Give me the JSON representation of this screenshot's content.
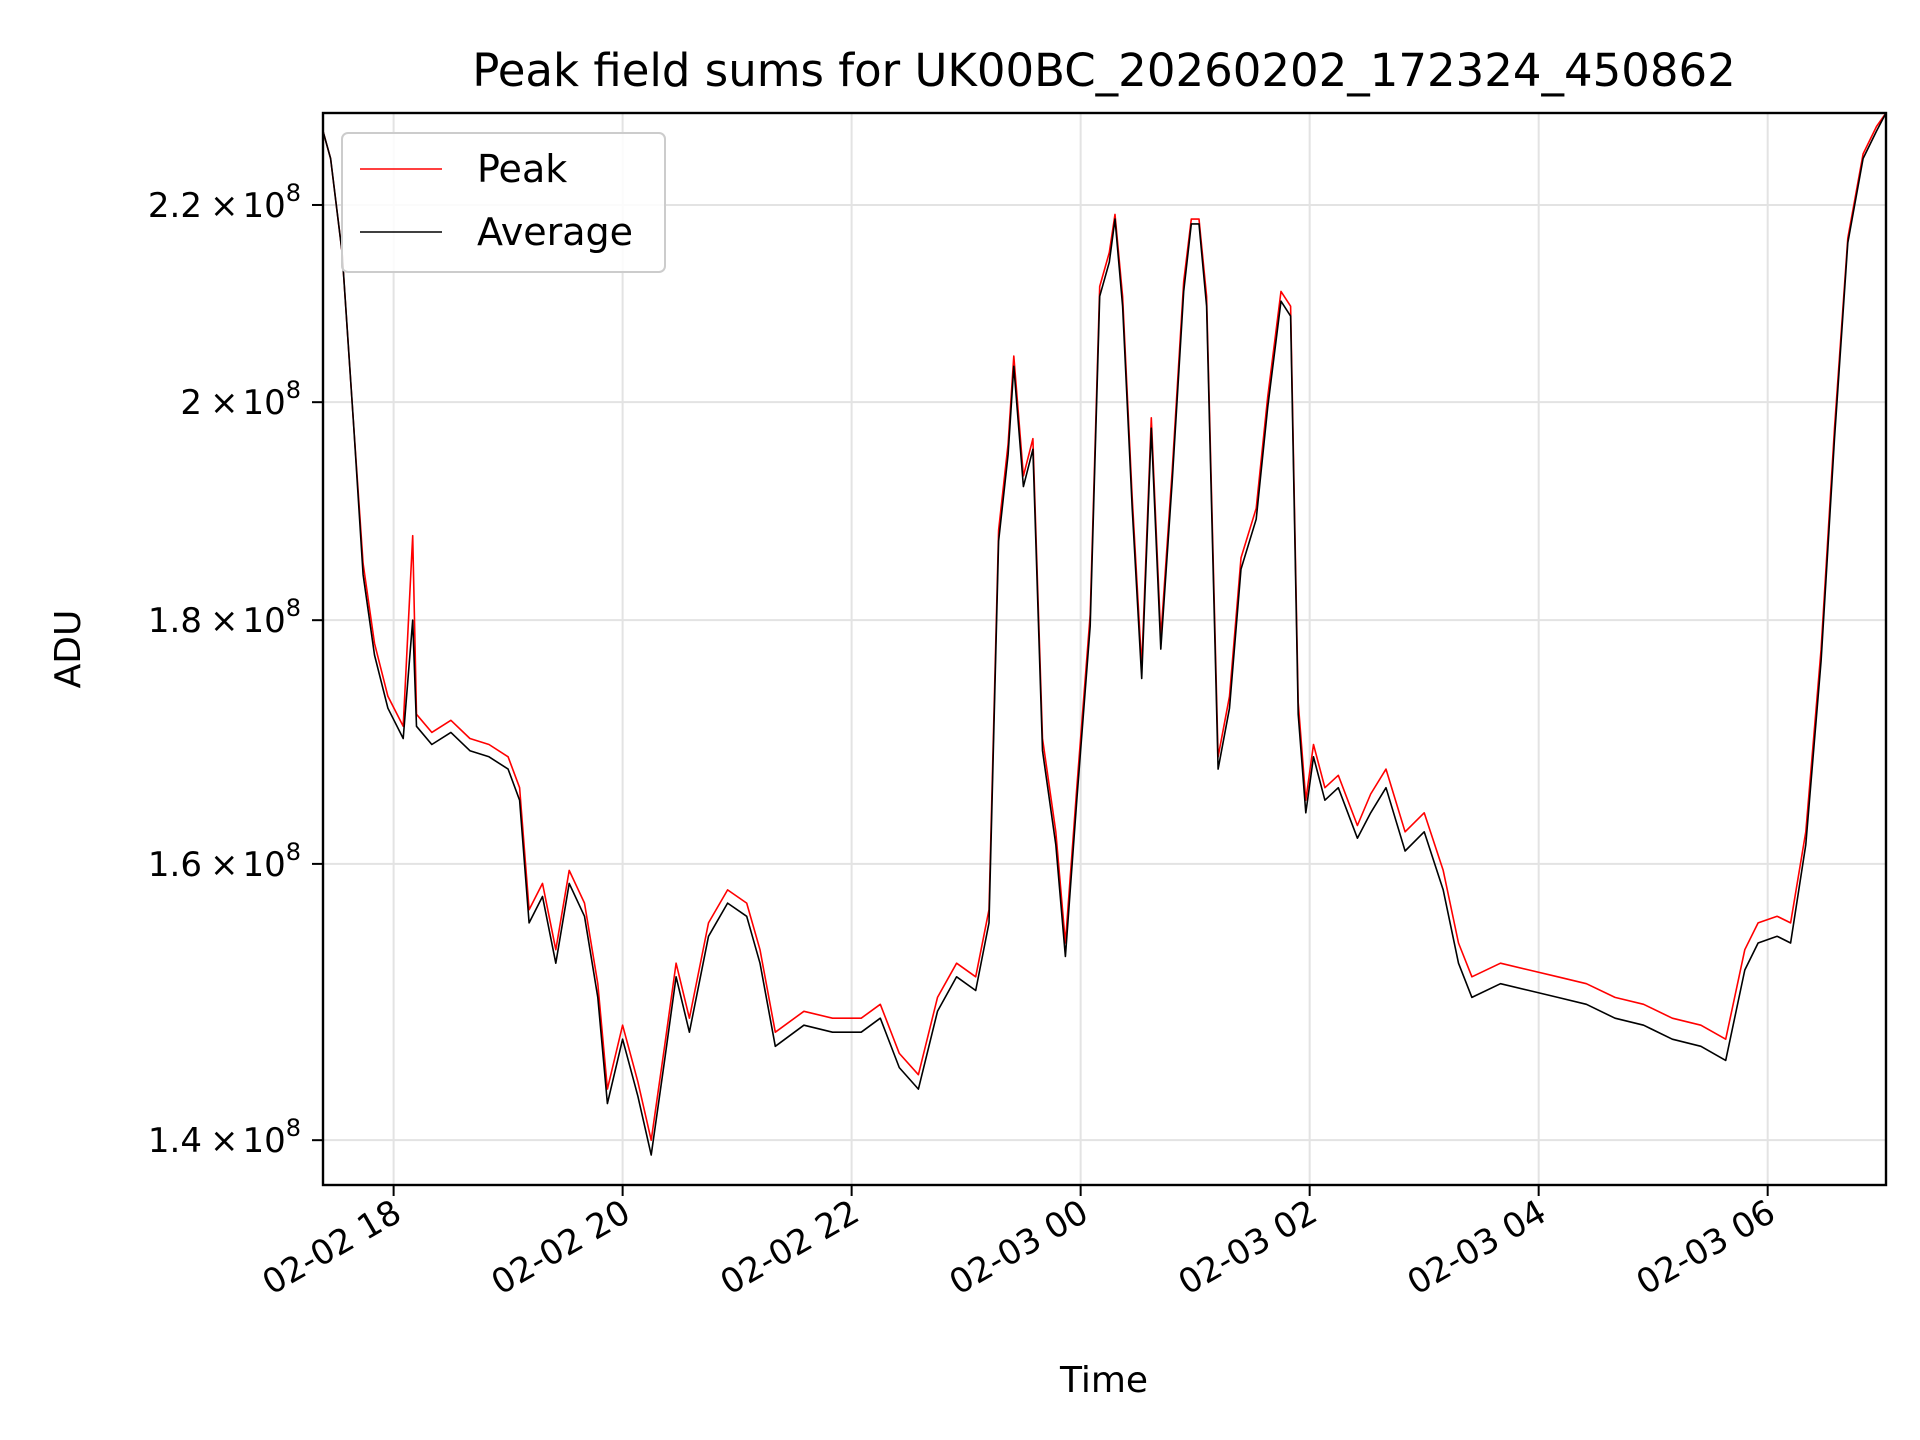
{
  "chart_data": {
    "type": "line",
    "title": "Peak field sums for UK00BC_20260202_172324_450862",
    "xlabel": "Time",
    "ylabel": "ADU",
    "yscale": "log",
    "xlim": [
      "2026-02-02T17:23",
      "2026-02-03T07:02"
    ],
    "ylim": [
      137000000,
      230000000
    ],
    "x_ticks": [
      {
        "value": "2026-02-02T18:00",
        "label": "02-02 18"
      },
      {
        "value": "2026-02-02T20:00",
        "label": "02-02 20"
      },
      {
        "value": "2026-02-02T22:00",
        "label": "02-02 22"
      },
      {
        "value": "2026-02-03T00:00",
        "label": "02-03 00"
      },
      {
        "value": "2026-02-03T02:00",
        "label": "02-03 02"
      },
      {
        "value": "2026-02-03T04:00",
        "label": "02-03 04"
      },
      {
        "value": "2026-02-03T06:00",
        "label": "02-03 06"
      }
    ],
    "y_ticks": [
      {
        "value": 140000000,
        "mantissa": "1.4",
        "exponent": "8"
      },
      {
        "value": 160000000,
        "mantissa": "1.6",
        "exponent": "8"
      },
      {
        "value": 180000000,
        "mantissa": "1.8",
        "exponent": "8"
      },
      {
        "value": 200000000,
        "mantissa": "2",
        "exponent": "8"
      },
      {
        "value": 220000000,
        "mantissa": "2.2",
        "exponent": "8"
      }
    ],
    "times_symbol": "×",
    "base": "10",
    "grid": true,
    "legend_position": "upper-left",
    "series": [
      {
        "name": "Peak",
        "color": "#ff0000",
        "points": [
          [
            "2026-02-02T17:23",
            228000000
          ],
          [
            "2026-02-02T17:27",
            225000000
          ],
          [
            "2026-02-02T17:33",
            215000000
          ],
          [
            "2026-02-02T17:39",
            198000000
          ],
          [
            "2026-02-02T17:44",
            185000000
          ],
          [
            "2026-02-02T17:50",
            178000000
          ],
          [
            "2026-02-02T17:57",
            173500000
          ],
          [
            "2026-02-02T18:05",
            171000000
          ],
          [
            "2026-02-02T18:10",
            187500000
          ],
          [
            "2026-02-02T18:12",
            172000000
          ],
          [
            "2026-02-02T18:20",
            170500000
          ],
          [
            "2026-02-02T18:30",
            171500000
          ],
          [
            "2026-02-02T18:40",
            170000000
          ],
          [
            "2026-02-02T18:50",
            169500000
          ],
          [
            "2026-02-02T19:00",
            168500000
          ],
          [
            "2026-02-02T19:06",
            166000000
          ],
          [
            "2026-02-02T19:11",
            156500000
          ],
          [
            "2026-02-02T19:18",
            158500000
          ],
          [
            "2026-02-02T19:25",
            153500000
          ],
          [
            "2026-02-02T19:32",
            159500000
          ],
          [
            "2026-02-02T19:40",
            157000000
          ],
          [
            "2026-02-02T19:47",
            151000000
          ],
          [
            "2026-02-02T19:52",
            143500000
          ],
          [
            "2026-02-02T20:00",
            148000000
          ],
          [
            "2026-02-02T20:08",
            144000000
          ],
          [
            "2026-02-02T20:15",
            140000000
          ],
          [
            "2026-02-02T20:22",
            146500000
          ],
          [
            "2026-02-02T20:28",
            152500000
          ],
          [
            "2026-02-02T20:35",
            148500000
          ],
          [
            "2026-02-02T20:45",
            155500000
          ],
          [
            "2026-02-02T20:55",
            158000000
          ],
          [
            "2026-02-02T21:05",
            157000000
          ],
          [
            "2026-02-02T21:12",
            153500000
          ],
          [
            "2026-02-02T21:20",
            147500000
          ],
          [
            "2026-02-02T21:35",
            149000000
          ],
          [
            "2026-02-02T21:50",
            148500000
          ],
          [
            "2026-02-02T22:05",
            148500000
          ],
          [
            "2026-02-02T22:15",
            149500000
          ],
          [
            "2026-02-02T22:25",
            146000000
          ],
          [
            "2026-02-02T22:35",
            144500000
          ],
          [
            "2026-02-02T22:45",
            150000000
          ],
          [
            "2026-02-02T22:55",
            152500000
          ],
          [
            "2026-02-02T23:05",
            151500000
          ],
          [
            "2026-02-02T23:12",
            156500000
          ],
          [
            "2026-02-02T23:17",
            188000000
          ],
          [
            "2026-02-02T23:22",
            196000000
          ],
          [
            "2026-02-02T23:25",
            204500000
          ],
          [
            "2026-02-02T23:30",
            193000000
          ],
          [
            "2026-02-02T23:35",
            196500000
          ],
          [
            "2026-02-02T23:40",
            170000000
          ],
          [
            "2026-02-02T23:47",
            162500000
          ],
          [
            "2026-02-02T23:52",
            154000000
          ],
          [
            "2026-02-02T23:58",
            166000000
          ],
          [
            "2026-02-03T00:05",
            180500000
          ],
          [
            "2026-02-03T00:10",
            211500000
          ],
          [
            "2026-02-03T00:15",
            215000000
          ],
          [
            "2026-02-03T00:18",
            219000000
          ],
          [
            "2026-02-03T00:22",
            210500000
          ],
          [
            "2026-02-03T00:27",
            191000000
          ],
          [
            "2026-02-03T00:32",
            176000000
          ],
          [
            "2026-02-03T00:37",
            198500000
          ],
          [
            "2026-02-03T00:42",
            178500000
          ],
          [
            "2026-02-03T00:48",
            193500000
          ],
          [
            "2026-02-03T00:54",
            212000000
          ],
          [
            "2026-02-03T00:58",
            218500000
          ],
          [
            "2026-02-03T01:02",
            218500000
          ],
          [
            "2026-02-03T01:06",
            210500000
          ],
          [
            "2026-02-03T01:12",
            168500000
          ],
          [
            "2026-02-03T01:18",
            173500000
          ],
          [
            "2026-02-03T01:24",
            185500000
          ],
          [
            "2026-02-03T01:32",
            190000000
          ],
          [
            "2026-02-03T01:38",
            200500000
          ],
          [
            "2026-02-03T01:45",
            211000000
          ],
          [
            "2026-02-03T01:50",
            209500000
          ],
          [
            "2026-02-03T01:54",
            173000000
          ],
          [
            "2026-02-03T01:58",
            165000000
          ],
          [
            "2026-02-03T02:02",
            169500000
          ],
          [
            "2026-02-03T02:08",
            166000000
          ],
          [
            "2026-02-03T02:15",
            167000000
          ],
          [
            "2026-02-03T02:25",
            163000000
          ],
          [
            "2026-02-03T02:32",
            165500000
          ],
          [
            "2026-02-03T02:40",
            167500000
          ],
          [
            "2026-02-03T02:50",
            162500000
          ],
          [
            "2026-02-03T03:00",
            164000000
          ],
          [
            "2026-02-03T03:10",
            159500000
          ],
          [
            "2026-02-03T03:18",
            154000000
          ],
          [
            "2026-02-03T03:25",
            151500000
          ],
          [
            "2026-02-03T03:40",
            152500000
          ],
          [
            "2026-02-03T03:55",
            152000000
          ],
          [
            "2026-02-03T04:10",
            151500000
          ],
          [
            "2026-02-03T04:25",
            151000000
          ],
          [
            "2026-02-03T04:40",
            150000000
          ],
          [
            "2026-02-03T04:55",
            149500000
          ],
          [
            "2026-02-03T05:10",
            148500000
          ],
          [
            "2026-02-03T05:25",
            148000000
          ],
          [
            "2026-02-03T05:38",
            147000000
          ],
          [
            "2026-02-03T05:48",
            153500000
          ],
          [
            "2026-02-03T05:55",
            155500000
          ],
          [
            "2026-02-03T06:05",
            156000000
          ],
          [
            "2026-02-03T06:12",
            155500000
          ],
          [
            "2026-02-03T06:20",
            162500000
          ],
          [
            "2026-02-03T06:28",
            177500000
          ],
          [
            "2026-02-03T06:35",
            197500000
          ],
          [
            "2026-02-03T06:42",
            216500000
          ],
          [
            "2026-02-03T06:50",
            225500000
          ],
          [
            "2026-02-03T06:57",
            228500000
          ],
          [
            "2026-02-03T07:02",
            230000000
          ]
        ]
      },
      {
        "name": "Average",
        "color": "#000000",
        "points": [
          [
            "2026-02-02T17:23",
            228000000
          ],
          [
            "2026-02-02T17:27",
            225000000
          ],
          [
            "2026-02-02T17:33",
            215000000
          ],
          [
            "2026-02-02T17:39",
            198000000
          ],
          [
            "2026-02-02T17:44",
            184000000
          ],
          [
            "2026-02-02T17:50",
            177000000
          ],
          [
            "2026-02-02T17:57",
            172500000
          ],
          [
            "2026-02-02T18:05",
            170000000
          ],
          [
            "2026-02-02T18:10",
            180000000
          ],
          [
            "2026-02-02T18:12",
            171000000
          ],
          [
            "2026-02-02T18:20",
            169500000
          ],
          [
            "2026-02-02T18:30",
            170500000
          ],
          [
            "2026-02-02T18:40",
            169000000
          ],
          [
            "2026-02-02T18:50",
            168500000
          ],
          [
            "2026-02-02T19:00",
            167500000
          ],
          [
            "2026-02-02T19:06",
            165000000
          ],
          [
            "2026-02-02T19:11",
            155500000
          ],
          [
            "2026-02-02T19:18",
            157500000
          ],
          [
            "2026-02-02T19:25",
            152500000
          ],
          [
            "2026-02-02T19:32",
            158500000
          ],
          [
            "2026-02-02T19:40",
            156000000
          ],
          [
            "2026-02-02T19:47",
            150000000
          ],
          [
            "2026-02-02T19:52",
            142500000
          ],
          [
            "2026-02-02T20:00",
            147000000
          ],
          [
            "2026-02-02T20:08",
            143000000
          ],
          [
            "2026-02-02T20:15",
            139000000
          ],
          [
            "2026-02-02T20:22",
            145500000
          ],
          [
            "2026-02-02T20:28",
            151500000
          ],
          [
            "2026-02-02T20:35",
            147500000
          ],
          [
            "2026-02-02T20:45",
            154500000
          ],
          [
            "2026-02-02T20:55",
            157000000
          ],
          [
            "2026-02-02T21:05",
            156000000
          ],
          [
            "2026-02-02T21:12",
            152500000
          ],
          [
            "2026-02-02T21:20",
            146500000
          ],
          [
            "2026-02-02T21:35",
            148000000
          ],
          [
            "2026-02-02T21:50",
            147500000
          ],
          [
            "2026-02-02T22:05",
            147500000
          ],
          [
            "2026-02-02T22:15",
            148500000
          ],
          [
            "2026-02-02T22:25",
            145000000
          ],
          [
            "2026-02-02T22:35",
            143500000
          ],
          [
            "2026-02-02T22:45",
            149000000
          ],
          [
            "2026-02-02T22:55",
            151500000
          ],
          [
            "2026-02-02T23:05",
            150500000
          ],
          [
            "2026-02-02T23:12",
            155500000
          ],
          [
            "2026-02-02T23:17",
            187000000
          ],
          [
            "2026-02-02T23:22",
            195000000
          ],
          [
            "2026-02-02T23:25",
            203500000
          ],
          [
            "2026-02-02T23:30",
            192000000
          ],
          [
            "2026-02-02T23:35",
            195500000
          ],
          [
            "2026-02-02T23:40",
            169000000
          ],
          [
            "2026-02-02T23:47",
            161500000
          ],
          [
            "2026-02-02T23:52",
            153000000
          ],
          [
            "2026-02-02T23:58",
            165000000
          ],
          [
            "2026-02-03T00:05",
            179500000
          ],
          [
            "2026-02-03T00:10",
            210500000
          ],
          [
            "2026-02-03T00:15",
            214000000
          ],
          [
            "2026-02-03T00:18",
            218500000
          ],
          [
            "2026-02-03T00:22",
            209500000
          ],
          [
            "2026-02-03T00:27",
            190000000
          ],
          [
            "2026-02-03T00:32",
            175000000
          ],
          [
            "2026-02-03T00:37",
            197500000
          ],
          [
            "2026-02-03T00:42",
            177500000
          ],
          [
            "2026-02-03T00:48",
            192500000
          ],
          [
            "2026-02-03T00:54",
            211000000
          ],
          [
            "2026-02-03T00:58",
            218000000
          ],
          [
            "2026-02-03T01:02",
            218000000
          ],
          [
            "2026-02-03T01:06",
            209500000
          ],
          [
            "2026-02-03T01:12",
            167500000
          ],
          [
            "2026-02-03T01:18",
            172500000
          ],
          [
            "2026-02-03T01:24",
            184500000
          ],
          [
            "2026-02-03T01:32",
            189000000
          ],
          [
            "2026-02-03T01:38",
            199500000
          ],
          [
            "2026-02-03T01:45",
            210000000
          ],
          [
            "2026-02-03T01:50",
            208500000
          ],
          [
            "2026-02-03T01:54",
            172000000
          ],
          [
            "2026-02-03T01:58",
            164000000
          ],
          [
            "2026-02-03T02:02",
            168500000
          ],
          [
            "2026-02-03T02:08",
            165000000
          ],
          [
            "2026-02-03T02:15",
            166000000
          ],
          [
            "2026-02-03T02:25",
            162000000
          ],
          [
            "2026-02-03T02:32",
            164000000
          ],
          [
            "2026-02-03T02:40",
            166000000
          ],
          [
            "2026-02-03T02:50",
            161000000
          ],
          [
            "2026-02-03T03:00",
            162500000
          ],
          [
            "2026-02-03T03:10",
            158000000
          ],
          [
            "2026-02-03T03:18",
            152500000
          ],
          [
            "2026-02-03T03:25",
            150000000
          ],
          [
            "2026-02-03T03:40",
            151000000
          ],
          [
            "2026-02-03T03:55",
            150500000
          ],
          [
            "2026-02-03T04:10",
            150000000
          ],
          [
            "2026-02-03T04:25",
            149500000
          ],
          [
            "2026-02-03T04:40",
            148500000
          ],
          [
            "2026-02-03T04:55",
            148000000
          ],
          [
            "2026-02-03T05:10",
            147000000
          ],
          [
            "2026-02-03T05:25",
            146500000
          ],
          [
            "2026-02-03T05:38",
            145500000
          ],
          [
            "2026-02-03T05:48",
            152000000
          ],
          [
            "2026-02-03T05:55",
            154000000
          ],
          [
            "2026-02-03T06:05",
            154500000
          ],
          [
            "2026-02-03T06:12",
            154000000
          ],
          [
            "2026-02-03T06:20",
            161500000
          ],
          [
            "2026-02-03T06:28",
            176500000
          ],
          [
            "2026-02-03T06:35",
            196500000
          ],
          [
            "2026-02-03T06:42",
            216000000
          ],
          [
            "2026-02-03T06:50",
            225000000
          ],
          [
            "2026-02-03T06:57",
            228000000
          ],
          [
            "2026-02-03T07:02",
            230000000
          ]
        ]
      }
    ]
  }
}
